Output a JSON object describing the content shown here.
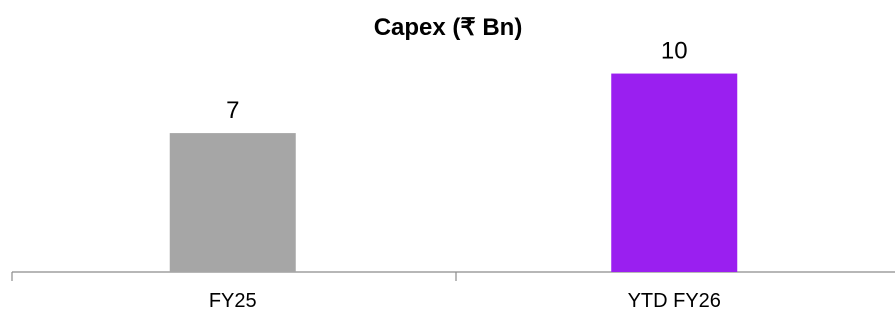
{
  "chart_data": {
    "type": "bar",
    "title": "Capex (₹ Bn)",
    "categories": [
      "FY25",
      "YTD FY26"
    ],
    "values": [
      7,
      10
    ],
    "data_labels": [
      "7",
      "10"
    ],
    "colors": [
      "#a6a6a6",
      "#9a1ff0"
    ],
    "xlabel": "",
    "ylabel": "",
    "ylim": [
      0,
      12.8
    ],
    "grid": false,
    "legend": "none"
  }
}
